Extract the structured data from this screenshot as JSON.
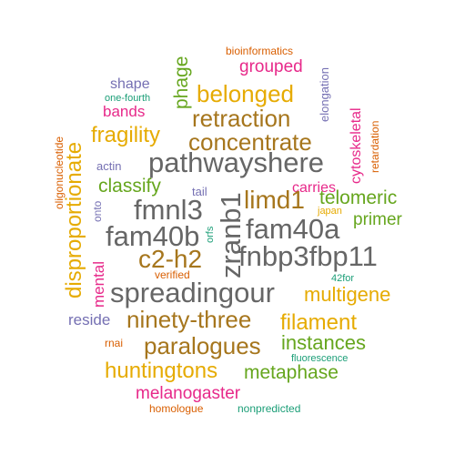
{
  "palette": {
    "orange": "#d95f02",
    "teal": "#1b9e77",
    "purple": "#7570b3",
    "pink": "#e7298a",
    "green": "#66a61e",
    "gold": "#e6ab02",
    "brown": "#a6761d",
    "gray": "#666666"
  },
  "words": {
    "bioinformatics": "bioinformatics",
    "grouped": "grouped",
    "shape": "shape",
    "belonged": "belonged",
    "one_fourth": "one-fourth",
    "bands": "bands",
    "retraction": "retraction",
    "fragility": "fragility",
    "concentrate": "concentrate",
    "pathwayshere": "pathwayshere",
    "actin": "actin",
    "classify": "classify",
    "carries": "carries",
    "tail": "tail",
    "telomeric": "telomeric",
    "limd1": "limd1",
    "fmnl3": "fmnl3",
    "japan": "japan",
    "primer": "primer",
    "fam40a": "fam40a",
    "fam40b": "fam40b",
    "fnbp3fbp11": "fnbp3fbp11",
    "c2_h2": "c2-h2",
    "verified": "verified",
    "for42": "42for",
    "spreadingour": "spreadingour",
    "multigene": "multigene",
    "reside": "reside",
    "ninety_three": "ninety-three",
    "filament": "filament",
    "paralogues": "paralogues",
    "rnai": "rnai",
    "instances": "instances",
    "fluorescence": "fluorescence",
    "huntingtons": "huntingtons",
    "metaphase": "metaphase",
    "melanogaster": "melanogaster",
    "homologue": "homologue",
    "nonpredicted": "nonpredicted",
    "oligonucleotide": "oligonucleotide",
    "disproportionate": "disproportionate",
    "phage": "phage",
    "elongation": "elongation",
    "cytoskeletal": "cytoskeletal",
    "retardation": "retardation",
    "onto": "onto",
    "mental": "mental",
    "orfs": "orfs",
    "zranb1": "zranb1"
  }
}
